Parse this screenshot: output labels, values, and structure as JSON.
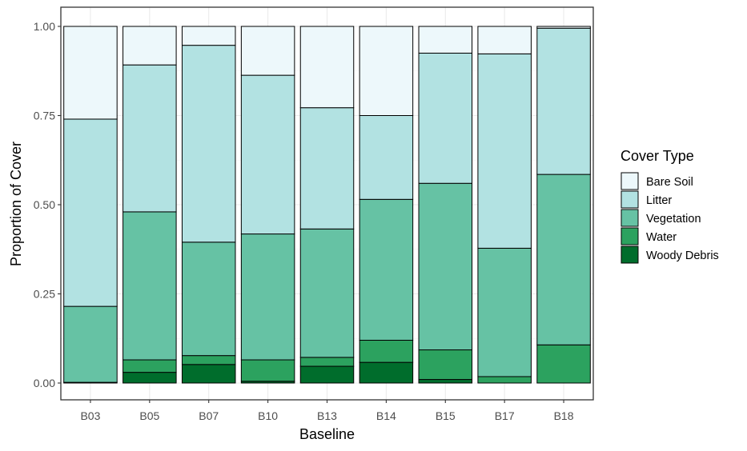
{
  "chart_data": {
    "type": "bar",
    "stacked": true,
    "xlabel": "Baseline",
    "ylabel": "Proportion of Cover",
    "ylim": [
      0,
      1
    ],
    "yticks": [
      "0.00",
      "0.25",
      "0.50",
      "0.75",
      "1.00"
    ],
    "grid": true,
    "legend_title": "Cover Type",
    "legend_position": "right",
    "categories": [
      "B03",
      "B05",
      "B07",
      "B10",
      "B13",
      "B14",
      "B15",
      "B17",
      "B18"
    ],
    "series": [
      {
        "name": "Woody Debris",
        "color": "#006d2c",
        "values": [
          0.002,
          0.03,
          0.052,
          0.005,
          0.047,
          0.058,
          0.01,
          0.0,
          0.0
        ]
      },
      {
        "name": "Water",
        "color": "#2ca25f",
        "values": [
          0.0,
          0.035,
          0.025,
          0.06,
          0.025,
          0.062,
          0.083,
          0.018,
          0.107
        ]
      },
      {
        "name": "Vegetation",
        "color": "#66c2a4",
        "values": [
          0.213,
          0.415,
          0.318,
          0.353,
          0.36,
          0.395,
          0.467,
          0.36,
          0.478
        ]
      },
      {
        "name": "Litter",
        "color": "#b2e2e2",
        "values": [
          0.525,
          0.412,
          0.552,
          0.445,
          0.34,
          0.235,
          0.365,
          0.545,
          0.41
        ]
      },
      {
        "name": "Bare Soil",
        "color": "#edf8fb",
        "values": [
          0.26,
          0.108,
          0.053,
          0.137,
          0.228,
          0.25,
          0.075,
          0.077,
          0.005
        ]
      }
    ],
    "legend_order": [
      "Bare Soil",
      "Litter",
      "Vegetation",
      "Water",
      "Woody Debris"
    ]
  }
}
